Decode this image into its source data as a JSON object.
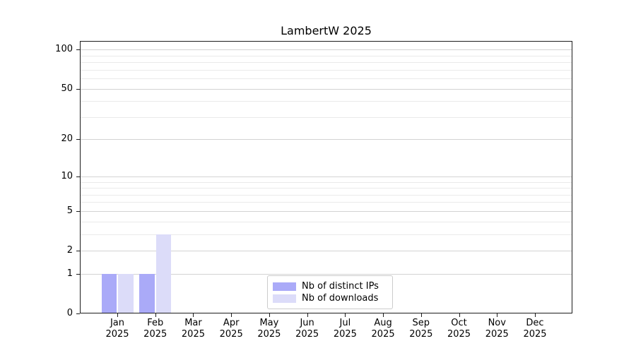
{
  "chart_data": {
    "type": "bar",
    "title": "LambertW 2025",
    "x_categories_line1": [
      "Jan",
      "Feb",
      "Mar",
      "Apr",
      "May",
      "Jun",
      "Jul",
      "Aug",
      "Sep",
      "Oct",
      "Nov",
      "Dec"
    ],
    "x_categories_line2": "2025",
    "series": [
      {
        "name": "Nb of distinct IPs",
        "color": "#aaaaf8",
        "values": [
          1,
          1,
          0,
          0,
          0,
          0,
          0,
          0,
          0,
          0,
          0,
          0
        ]
      },
      {
        "name": "Nb of downloads",
        "color": "#dcdcf9",
        "values": [
          1,
          3,
          0,
          0,
          0,
          0,
          0,
          0,
          0,
          0,
          0,
          0
        ]
      }
    ],
    "y_scale": "log10(1+v)",
    "y_major_ticks": [
      0,
      1,
      2,
      5,
      10,
      20,
      50,
      100
    ],
    "y_minor_gridlines": [
      3,
      4,
      6,
      7,
      8,
      9,
      30,
      40,
      60,
      70,
      80,
      90
    ],
    "ylim": [
      0,
      116.5
    ],
    "grid": "horizontal",
    "legend_position": "lower center inside"
  },
  "colors": {
    "grid_major": "#d3d3d3",
    "grid_minor": "#eaeaea",
    "spine": "#1c1c1c",
    "text": "#000000",
    "legend_border": "#cccccc"
  }
}
